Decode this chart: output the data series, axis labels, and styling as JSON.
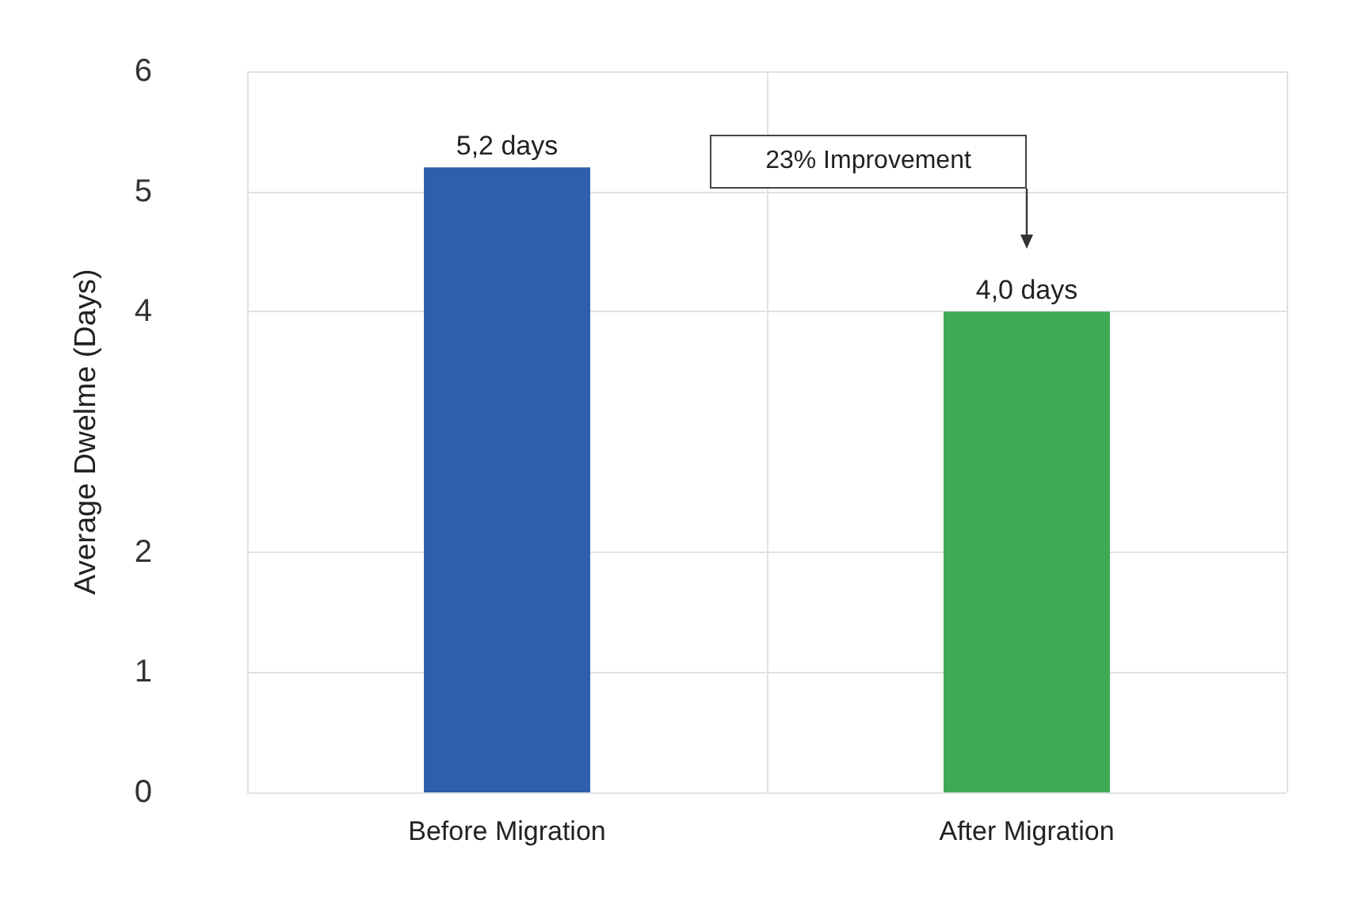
{
  "chart_data": {
    "type": "bar",
    "ylabel": "Average Dwelme (Days)",
    "categories": [
      "Before Migration",
      "After Migration"
    ],
    "values": [
      5.2,
      4.0
    ],
    "colors": [
      "#2e5fac",
      "#3faa55"
    ],
    "value_labels": [
      "5,2 days",
      "4,0 days"
    ],
    "ylim": [
      0,
      6
    ],
    "yticks": [
      0,
      1,
      2,
      4,
      5,
      6
    ],
    "grid": true,
    "annotations": [
      "23% Improvement"
    ]
  }
}
